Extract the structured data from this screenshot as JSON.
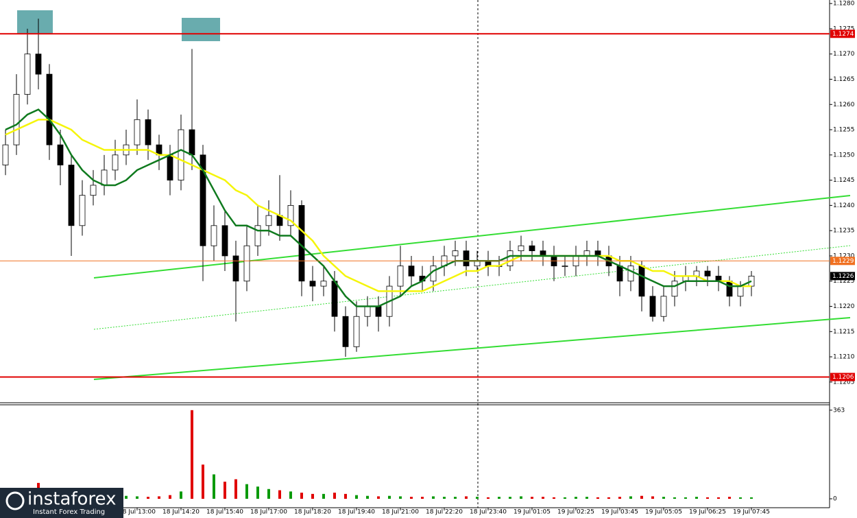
{
  "chart_data": {
    "type": "candlestick",
    "categories": [
      null,
      null,
      null,
      null,
      null,
      null,
      null,
      null,
      null,
      null,
      null,
      null,
      "18 Jul 13:00",
      null,
      null,
      null,
      "18 Jul 14:20",
      null,
      null,
      null,
      "18 Jul 15:40",
      null,
      null,
      null,
      "18 Jul 17:00",
      null,
      null,
      null,
      "18 Jul 18:20",
      null,
      null,
      null,
      "18 Jul 19:40",
      null,
      null,
      null,
      "18 Jul 21:00",
      null,
      null,
      null,
      "18 Jul 22:20",
      null,
      null,
      null,
      "18 Jul 23:40",
      null,
      null,
      null,
      "19 Jul 01:05",
      null,
      null,
      null,
      "19 Jul 02:25",
      null,
      null,
      null,
      "19 Jul 03:45",
      null,
      null,
      null,
      "19 Jul 05:05",
      null,
      null,
      null,
      "19 Jul 06:25",
      null,
      null,
      null,
      "19 Jul 07:45"
    ],
    "open": [
      1.1248,
      1.1252,
      1.1262,
      1.127,
      1.1266,
      1.1252,
      1.1248,
      1.1236,
      1.1242,
      1.1244,
      1.1247,
      1.125,
      1.1252,
      1.1257,
      1.1252,
      1.125,
      1.1245,
      1.1255,
      1.125,
      1.1232,
      1.1236,
      1.123,
      1.1225,
      1.1232,
      1.1236,
      1.1238,
      1.1236,
      1.124,
      1.1225,
      1.1224,
      1.1225,
      1.1218,
      1.1212,
      1.1218,
      1.122,
      1.1218,
      1.1224,
      1.1228,
      1.1226,
      1.1225,
      1.1228,
      1.123,
      1.1231,
      1.1228,
      1.1229,
      1.1228,
      1.1228,
      1.1231,
      1.1232,
      1.1231,
      1.123,
      1.1228,
      1.1228,
      1.123,
      1.1231,
      1.123,
      1.1228,
      1.1225,
      1.1228,
      1.1222,
      1.1218,
      1.1222,
      1.1225,
      1.1226,
      1.1227,
      1.1226,
      1.1225,
      1.1222,
      1.1224
    ],
    "high": [
      1.1255,
      1.1266,
      1.1275,
      1.1277,
      1.1268,
      1.1255,
      1.125,
      1.1245,
      1.1247,
      1.125,
      1.1253,
      1.1255,
      1.1261,
      1.1259,
      1.1254,
      1.1252,
      1.1258,
      1.1271,
      1.1252,
      1.124,
      1.1239,
      1.1233,
      1.1236,
      1.124,
      1.1241,
      1.1246,
      1.1243,
      1.1241,
      1.1228,
      1.1228,
      1.1227,
      1.122,
      1.1221,
      1.1222,
      1.1222,
      1.1226,
      1.1232,
      1.123,
      1.1228,
      1.123,
      1.1232,
      1.1233,
      1.1233,
      1.1231,
      1.1231,
      1.123,
      1.1233,
      1.1234,
      1.1233,
      1.1233,
      1.1232,
      1.123,
      1.1232,
      1.1233,
      1.1233,
      1.1232,
      1.123,
      1.123,
      1.1229,
      1.1224,
      1.1224,
      1.1227,
      1.1228,
      1.1228,
      1.1228,
      1.1228,
      1.1226,
      1.1225,
      1.1227
    ],
    "low": [
      1.1246,
      1.125,
      1.126,
      1.1263,
      1.1249,
      1.1244,
      1.123,
      1.1234,
      1.124,
      1.1242,
      1.1245,
      1.1248,
      1.125,
      1.1249,
      1.1247,
      1.1242,
      1.1243,
      1.1247,
      1.1225,
      1.1229,
      1.1227,
      1.1217,
      1.1223,
      1.123,
      1.1234,
      1.1233,
      1.1234,
      1.1222,
      1.1221,
      1.1222,
      1.1215,
      1.121,
      1.1211,
      1.1216,
      1.1215,
      1.1216,
      1.1222,
      1.1224,
      1.1223,
      1.1223,
      1.1226,
      1.1228,
      1.1226,
      1.1227,
      1.1226,
      1.1226,
      1.1227,
      1.1229,
      1.1229,
      1.1228,
      1.1225,
      1.1226,
      1.1226,
      1.1228,
      1.1228,
      1.1226,
      1.1222,
      1.1223,
      1.1219,
      1.1217,
      1.1217,
      1.122,
      1.1223,
      1.1224,
      1.1224,
      1.1223,
      1.122,
      1.122,
      1.1222
    ],
    "close": [
      1.1252,
      1.1262,
      1.127,
      1.1266,
      1.1252,
      1.1248,
      1.1236,
      1.1242,
      1.1244,
      1.1247,
      1.125,
      1.1252,
      1.1257,
      1.1252,
      1.125,
      1.1245,
      1.1255,
      1.125,
      1.1232,
      1.1236,
      1.123,
      1.1225,
      1.1232,
      1.1236,
      1.1238,
      1.1236,
      1.124,
      1.1225,
      1.1224,
      1.1225,
      1.1218,
      1.1212,
      1.1218,
      1.122,
      1.1218,
      1.1224,
      1.1228,
      1.1226,
      1.1225,
      1.1228,
      1.123,
      1.1231,
      1.1228,
      1.1229,
      1.1228,
      1.1228,
      1.1231,
      1.1232,
      1.1231,
      1.123,
      1.1228,
      1.1228,
      1.123,
      1.1231,
      1.123,
      1.1228,
      1.1225,
      1.1228,
      1.1222,
      1.1218,
      1.1222,
      1.1225,
      1.1226,
      1.1227,
      1.1226,
      1.1225,
      1.1222,
      1.1224,
      1.1226
    ],
    "volume": [
      8,
      10,
      15,
      65,
      30,
      20,
      12,
      10,
      8,
      8,
      10,
      12,
      10,
      8,
      10,
      15,
      30,
      363,
      140,
      100,
      70,
      80,
      60,
      50,
      40,
      35,
      30,
      25,
      20,
      20,
      25,
      20,
      15,
      12,
      10,
      12,
      10,
      8,
      8,
      10,
      8,
      8,
      10,
      8,
      6,
      8,
      8,
      10,
      8,
      8,
      6,
      6,
      8,
      8,
      6,
      6,
      8,
      10,
      12,
      10,
      8,
      6,
      6,
      8,
      6,
      6,
      8,
      6,
      6
    ],
    "lines": [
      {
        "color": "#f5f50a",
        "values": [
          1.1254,
          1.1255,
          1.1256,
          1.1257,
          1.1257,
          1.1256,
          1.1255,
          1.1253,
          1.1252,
          1.1251,
          1.1251,
          1.1251,
          1.1251,
          1.1251,
          1.125,
          1.125,
          1.1249,
          1.1248,
          1.1247,
          1.1246,
          1.1245,
          1.1243,
          1.1242,
          1.124,
          1.1239,
          1.1238,
          1.1237,
          1.1235,
          1.1233,
          1.123,
          1.1228,
          1.1226,
          1.1225,
          1.1224,
          1.1223,
          1.1223,
          1.1223,
          1.1223,
          1.1223,
          1.1224,
          1.1225,
          1.1226,
          1.1227,
          1.1227,
          1.1228,
          1.1228,
          1.1229,
          1.123,
          1.123,
          1.123,
          1.123,
          1.123,
          1.123,
          1.123,
          1.123,
          1.123,
          1.1229,
          1.1229,
          1.1228,
          1.1227,
          1.1227,
          1.1226,
          1.1226,
          1.1226,
          1.1225,
          1.1225,
          1.1225,
          1.1224,
          1.1224
        ]
      },
      {
        "color": "#0f7a1e",
        "values": [
          1.1255,
          1.1256,
          1.1258,
          1.1259,
          1.1257,
          1.1254,
          1.125,
          1.1247,
          1.1245,
          1.1244,
          1.1244,
          1.1245,
          1.1247,
          1.1248,
          1.1249,
          1.125,
          1.1251,
          1.125,
          1.1247,
          1.1243,
          1.1239,
          1.1236,
          1.1236,
          1.1235,
          1.1235,
          1.1234,
          1.1234,
          1.1232,
          1.123,
          1.1228,
          1.1225,
          1.1222,
          1.122,
          1.122,
          1.122,
          1.1221,
          1.1222,
          1.1224,
          1.1225,
          1.1227,
          1.1228,
          1.1229,
          1.1229,
          1.1229,
          1.1229,
          1.1229,
          1.123,
          1.123,
          1.123,
          1.123,
          1.123,
          1.123,
          1.123,
          1.123,
          1.123,
          1.1229,
          1.1228,
          1.1227,
          1.1226,
          1.1225,
          1.1224,
          1.1224,
          1.1225,
          1.1225,
          1.1225,
          1.1225,
          1.1224,
          1.1224,
          1.1225
        ]
      }
    ],
    "up_color": "#ffffff",
    "down_color": "#000000",
    "volume_up_color": "#0a9a0a",
    "volume_down_color": "#e00000",
    "ylim": [
      1.12009,
      1.12807
    ],
    "yticks": [
      1.1205,
      {
        "value": 1.121,
        "label": "1.1210"
      },
      1.1215,
      {
        "value": 1.122,
        "label": "1.1220"
      },
      1.1225,
      {
        "value": 1.123,
        "label": "1.1230"
      },
      1.1235,
      {
        "value": 1.124,
        "label": "1.1240"
      },
      1.1245,
      {
        "value": 1.125,
        "label": "1.1250"
      },
      1.1255,
      {
        "value": 1.126,
        "label": "1.1260"
      },
      1.1265,
      {
        "value": 1.127,
        "label": "1.1270"
      },
      1.1275,
      {
        "value": 1.128,
        "label": "1.1280"
      }
    ],
    "volume_ylim": [
      0,
      385
    ],
    "volume_yticks": [
      0,
      363
    ],
    "levels": [
      {
        "value": 1.1274,
        "color": "#e00000",
        "line": true
      },
      {
        "value": 1.1229,
        "color": "#f07020",
        "line": true
      },
      {
        "value": 1.1206,
        "color": "#e00000",
        "line": true
      },
      {
        "value": 1.1226,
        "color": "#000000",
        "line": false
      }
    ]
  },
  "branding": {
    "name": "instaforex",
    "tagline": "Instant Forex Trading"
  }
}
